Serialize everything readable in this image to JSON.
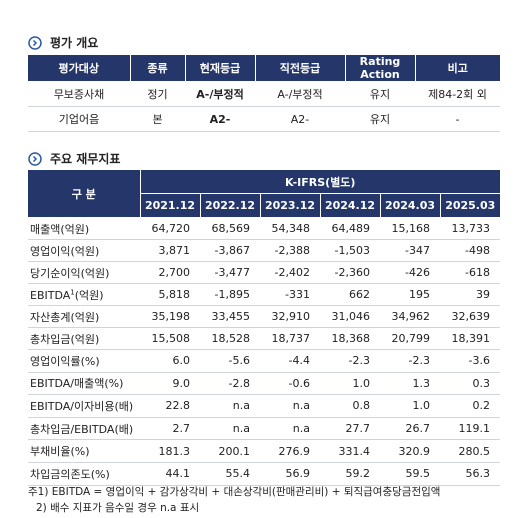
{
  "overview": {
    "title": "평가 개요",
    "headers": [
      "평가대상",
      "종류",
      "현재등급",
      "직전등급",
      "Rating Action",
      "비고"
    ],
    "rows": [
      [
        "무보증사채",
        "정기",
        "A-/부정적",
        "A-/부정적",
        "유지",
        "제84-2회 외"
      ],
      [
        "기업어음",
        "본",
        "A2-",
        "A2-",
        "유지",
        "-"
      ]
    ]
  },
  "financial": {
    "title": "주요 재무지표",
    "label_header": "구 분",
    "standard": "K-IFRS(별도)",
    "periods": [
      "2021.12",
      "2022.12",
      "2023.12",
      "2024.12",
      "2024.03",
      "2025.03"
    ],
    "rows": [
      {
        "label": "매출액(억원)",
        "values": [
          "64,720",
          "68,569",
          "54,348",
          "64,489",
          "15,168",
          "13,733"
        ]
      },
      {
        "label": "영업이익(억원)",
        "values": [
          "3,871",
          "-3,867",
          "-2,388",
          "-1,503",
          "-347",
          "-498"
        ]
      },
      {
        "label": "당기순이익(억원)",
        "values": [
          "2,700",
          "-3,477",
          "-2,402",
          "-2,360",
          "-426",
          "-618"
        ]
      },
      {
        "label": "EBITDA",
        "label_sup": "1",
        "label_suffix": "(억원)",
        "values": [
          "5,818",
          "-1,895",
          "-331",
          "662",
          "195",
          "39"
        ]
      },
      {
        "label": "자산총계(억원)",
        "values": [
          "35,198",
          "33,455",
          "32,910",
          "31,046",
          "34,962",
          "32,639"
        ]
      },
      {
        "label": "총차입금(억원)",
        "values": [
          "15,508",
          "18,528",
          "18,737",
          "18,368",
          "20,799",
          "18,391"
        ]
      },
      {
        "label": "영업이익률(%)",
        "values": [
          "6.0",
          "-5.6",
          "-4.4",
          "-2.3",
          "-2.3",
          "-3.6"
        ]
      },
      {
        "label": "EBITDA/매출액(%)",
        "values": [
          "9.0",
          "-2.8",
          "-0.6",
          "1.0",
          "1.3",
          "0.3"
        ]
      },
      {
        "label": "EBITDA/이자비용(배)",
        "values": [
          "22.8",
          "n.a",
          "n.a",
          "0.8",
          "1.0",
          "0.2"
        ]
      },
      {
        "label": "총차입금/EBITDA(배)",
        "values": [
          "2.7",
          "n.a",
          "n.a",
          "27.7",
          "26.7",
          "119.1"
        ]
      },
      {
        "label": "부채비율(%)",
        "values": [
          "181.3",
          "200.1",
          "276.9",
          "331.4",
          "320.9",
          "280.5"
        ]
      },
      {
        "label": "차입금의존도(%)",
        "values": [
          "44.1",
          "55.4",
          "56.9",
          "59.2",
          "59.5",
          "56.3"
        ]
      }
    ]
  },
  "footnotes": [
    "주1) EBITDA = 영업이익 + 감가상각비 + 대손상각비(판매관리비) + 퇴직급여충당금전입액",
    "2) 배수 지표가 음수일 경우 n.a 표시"
  ]
}
